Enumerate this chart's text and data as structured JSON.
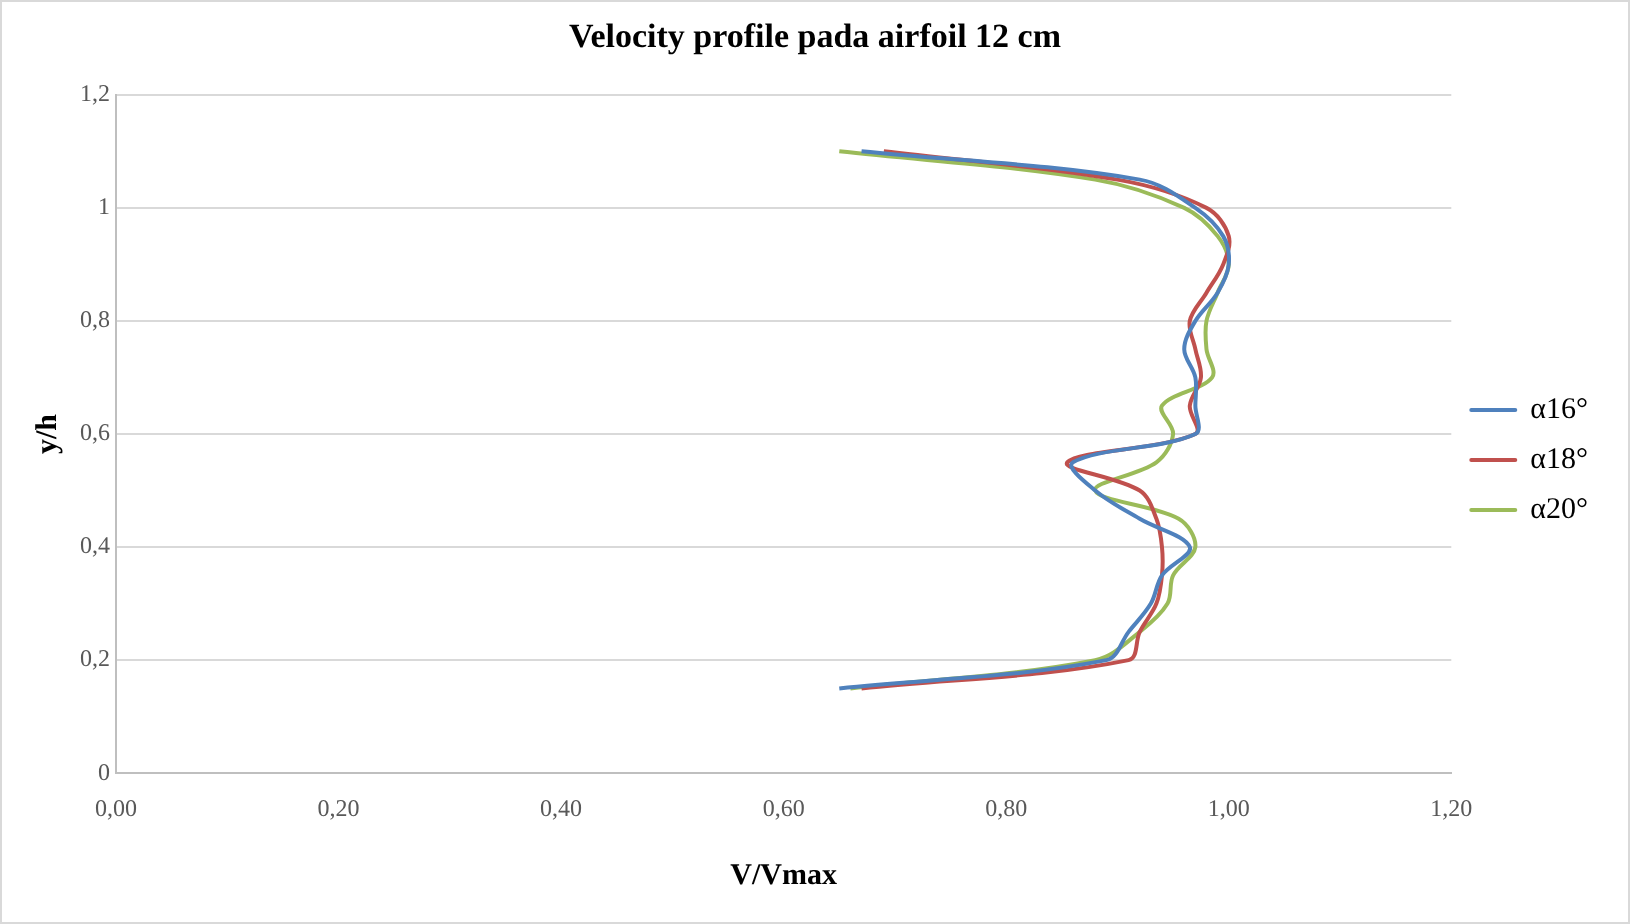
{
  "chart_data": {
    "type": "line",
    "title": "Velocity profile pada airfoil 12 cm",
    "xlabel": "V/Vmax",
    "ylabel": "y/h",
    "xlim": [
      0,
      1.2
    ],
    "xticks": [
      {
        "value": 0,
        "label": "0,00"
      },
      {
        "value": 0.2,
        "label": "0,20"
      },
      {
        "value": 0.4,
        "label": "0,40"
      },
      {
        "value": 0.6,
        "label": "0,60"
      },
      {
        "value": 0.8,
        "label": "0,80"
      },
      {
        "value": 1,
        "label": "1,00"
      },
      {
        "value": 1.2,
        "label": "1,20"
      }
    ],
    "ylim": [
      0,
      1.2
    ],
    "yticks": [
      0,
      {
        "value": 0.2,
        "label": "0,2"
      },
      {
        "value": 0.4,
        "label": "0,4"
      },
      {
        "value": 0.6,
        "label": "0,6"
      },
      {
        "value": 0.8,
        "label": "0,8"
      },
      1,
      {
        "value": 1.2,
        "label": "1,2"
      }
    ],
    "grid": "y",
    "legend": "right",
    "marker": "none",
    "line_style": "solid",
    "series": [
      {
        "name": "α16°",
        "color": "#4f81bd",
        "x": [
          0.65,
          0.89,
          0.91,
          0.93,
          0.94,
          0.965,
          0.92,
          0.88,
          0.86,
          0.97,
          0.97,
          0.97,
          0.96,
          0.97,
          0.99,
          1.0,
          0.995,
          0.97,
          0.92,
          0.67
        ],
        "values": [
          0.15,
          0.2,
          0.25,
          0.3,
          0.35,
          0.4,
          0.45,
          0.5,
          0.55,
          0.6,
          0.65,
          0.7,
          0.75,
          0.8,
          0.85,
          0.9,
          0.95,
          1.0,
          1.05,
          1.1
        ]
      },
      {
        "name": "α18°",
        "color": "#c0504d",
        "x": [
          0.67,
          0.91,
          0.92,
          0.935,
          0.94,
          0.94,
          0.935,
          0.92,
          0.855,
          0.97,
          0.965,
          0.975,
          0.97,
          0.965,
          0.98,
          0.995,
          1.0,
          0.98,
          0.9,
          0.69
        ],
        "values": [
          0.15,
          0.2,
          0.25,
          0.3,
          0.35,
          0.4,
          0.45,
          0.5,
          0.55,
          0.6,
          0.65,
          0.7,
          0.75,
          0.8,
          0.85,
          0.9,
          0.95,
          1.0,
          1.05,
          1.1
        ]
      },
      {
        "name": "α20°",
        "color": "#9bbb59",
        "x": [
          0.66,
          0.88,
          0.92,
          0.945,
          0.95,
          0.97,
          0.955,
          0.88,
          0.935,
          0.95,
          0.94,
          0.985,
          0.98,
          0.98,
          0.99,
          1.0,
          0.99,
          0.96,
          0.88,
          0.65
        ],
        "values": [
          0.15,
          0.2,
          0.25,
          0.3,
          0.35,
          0.4,
          0.45,
          0.5,
          0.55,
          0.6,
          0.65,
          0.7,
          0.75,
          0.8,
          0.85,
          0.9,
          0.95,
          1.0,
          1.05,
          1.1
        ]
      }
    ]
  }
}
